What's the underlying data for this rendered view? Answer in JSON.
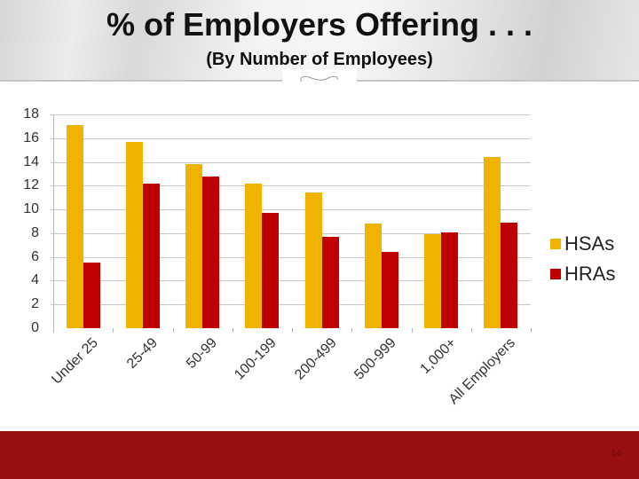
{
  "header": {
    "title": "% of Employers Offering . . .",
    "subtitle": "(By Number of Employees)"
  },
  "footer": {
    "page_number": "14"
  },
  "colors": {
    "hsa": "#f0b400",
    "hra": "#c00000",
    "footer": "#990e0e"
  },
  "chart_data": {
    "type": "bar",
    "title": "% of Employers Offering . . .",
    "subtitle": "(By Number of Employees)",
    "xlabel": "",
    "ylabel": "",
    "ylim": [
      0,
      18
    ],
    "yticks": [
      "0",
      "2",
      "4",
      "6",
      "8",
      "10",
      "12",
      "14",
      "16",
      "18"
    ],
    "grid": true,
    "legend_position": "right",
    "categories": [
      "Under 25",
      "25-49",
      "50-99",
      "100-199",
      "200-499",
      "500-999",
      "1,000+",
      "All Employers"
    ],
    "series": [
      {
        "name": "HSAs",
        "color": "#f0b400",
        "values": [
          17.1,
          15.7,
          13.8,
          12.2,
          11.4,
          8.8,
          7.9,
          14.4
        ]
      },
      {
        "name": "HRAs",
        "color": "#c00000",
        "values": [
          5.5,
          12.2,
          12.8,
          9.7,
          7.7,
          6.4,
          8.1,
          8.9
        ]
      }
    ]
  }
}
